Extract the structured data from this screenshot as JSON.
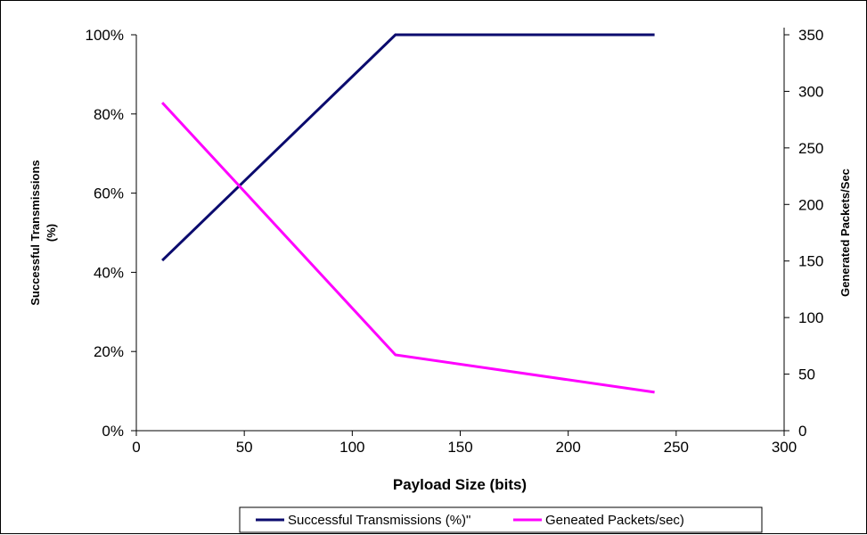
{
  "chart_data": {
    "type": "line",
    "title": "",
    "xlabel": "Payload Size (bits)",
    "ylabel": "Successful Transmissions\n(%)",
    "y2label": "Generated Packets/Sec",
    "xlim": [
      0,
      300
    ],
    "ylim": [
      0,
      100
    ],
    "y2lim": [
      0,
      350
    ],
    "x_ticks": [
      "0",
      "50",
      "100",
      "150",
      "200",
      "250",
      "300"
    ],
    "y_ticks": [
      "0%",
      "20%",
      "40%",
      "60%",
      "80%",
      "100%"
    ],
    "y2_ticks": [
      "0",
      "50",
      "100",
      "150",
      "200",
      "250",
      "300",
      "350"
    ],
    "grid": false,
    "legend_position": "bottom",
    "series": [
      {
        "name": "Successful Transmissions (%)\"",
        "axis": "left",
        "color": "#0b0b6e",
        "x": [
          12,
          120,
          240
        ],
        "y": [
          43,
          100,
          100
        ]
      },
      {
        "name": "Geneated Packets/sec)",
        "axis": "right",
        "color": "#ff00ff",
        "x": [
          12,
          120,
          240
        ],
        "y": [
          290,
          67,
          34
        ]
      }
    ]
  }
}
